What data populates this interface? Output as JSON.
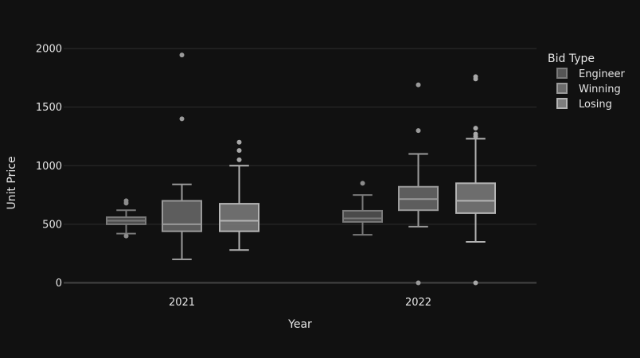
{
  "chart_data": {
    "type": "box",
    "xlabel": "Year",
    "ylabel": "Unit Price",
    "categories": [
      "2021",
      "2022"
    ],
    "ylim": [
      -140,
      2200
    ],
    "yticks": [
      0,
      500,
      1000,
      1500,
      2000
    ],
    "grid": true,
    "legend": {
      "title": "Bid Type",
      "placement": "top-right"
    },
    "series": [
      {
        "name": "Engineer",
        "color": "#555555",
        "boxes": [
          {
            "min": 420,
            "q1": 500,
            "median": 530,
            "q3": 560,
            "max": 620,
            "outliers": [
              400,
              680,
              700
            ]
          },
          {
            "min": 410,
            "q1": 520,
            "median": 550,
            "q3": 615,
            "max": 750,
            "outliers": [
              850
            ]
          }
        ]
      },
      {
        "name": "Winning",
        "color": "#6b6b6b",
        "boxes": [
          {
            "min": 200,
            "q1": 440,
            "median": 500,
            "q3": 700,
            "max": 840,
            "outliers": [
              1400,
              1945
            ]
          },
          {
            "min": 480,
            "q1": 620,
            "median": 715,
            "q3": 820,
            "max": 1100,
            "outliers": [
              0,
              1300,
              1690
            ]
          }
        ]
      },
      {
        "name": "Losing",
        "color": "#7e7e7e",
        "boxes": [
          {
            "min": 280,
            "q1": 440,
            "median": 530,
            "q3": 675,
            "max": 1000,
            "outliers": [
              1050,
              1130,
              1200
            ]
          },
          {
            "min": 350,
            "q1": 595,
            "median": 700,
            "q3": 850,
            "max": 1230,
            "outliers": [
              0,
              1250,
              1270,
              1320,
              1740,
              1760
            ]
          }
        ]
      }
    ]
  }
}
